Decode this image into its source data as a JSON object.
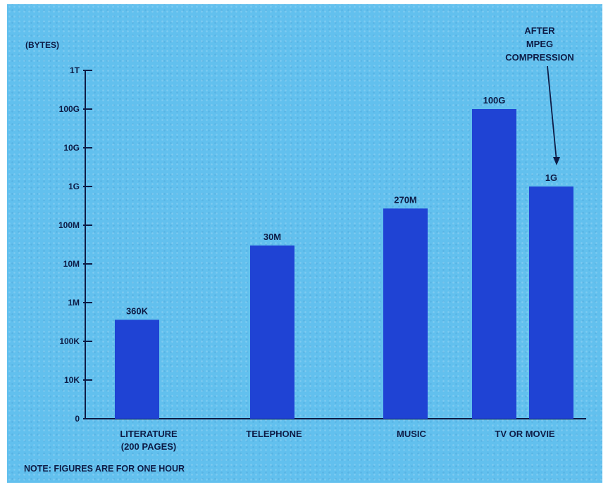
{
  "chart_data": {
    "type": "bar",
    "ylabel": "(BYTES)",
    "yscale": "log",
    "ylim": [
      "0",
      "1T"
    ],
    "y_ticks": [
      "1T",
      "100G",
      "10G",
      "1G",
      "100M",
      "10M",
      "1M",
      "100K",
      "10K",
      "0"
    ],
    "categories": [
      {
        "name": "LITERATURE",
        "subname": "(200 PAGES)"
      },
      {
        "name": "TELEPHONE",
        "subname": ""
      },
      {
        "name": "MUSIC",
        "subname": ""
      },
      {
        "name": "TV OR MOVIE",
        "subname": ""
      }
    ],
    "bars": [
      {
        "category_index": 0,
        "value": 360000,
        "label": "360K"
      },
      {
        "category_index": 1,
        "value": 30000000,
        "label": "30M"
      },
      {
        "category_index": 2,
        "value": 270000000,
        "label": "270M"
      },
      {
        "category_index": 3,
        "value": 100000000000,
        "label": "100G"
      },
      {
        "category_index": 3,
        "value": 1000000000,
        "label": "1G"
      }
    ],
    "annotation": {
      "lines": [
        "AFTER",
        "MPEG",
        "COMPRESSION"
      ],
      "points_to_bar_index": 4
    },
    "note": "NOTE:  FIGURES ARE FOR ONE HOUR",
    "colors": {
      "background": "#62c0ee",
      "bar": "#1f43d4",
      "text": "#0d1b45"
    },
    "grid": false,
    "legend": "none"
  }
}
